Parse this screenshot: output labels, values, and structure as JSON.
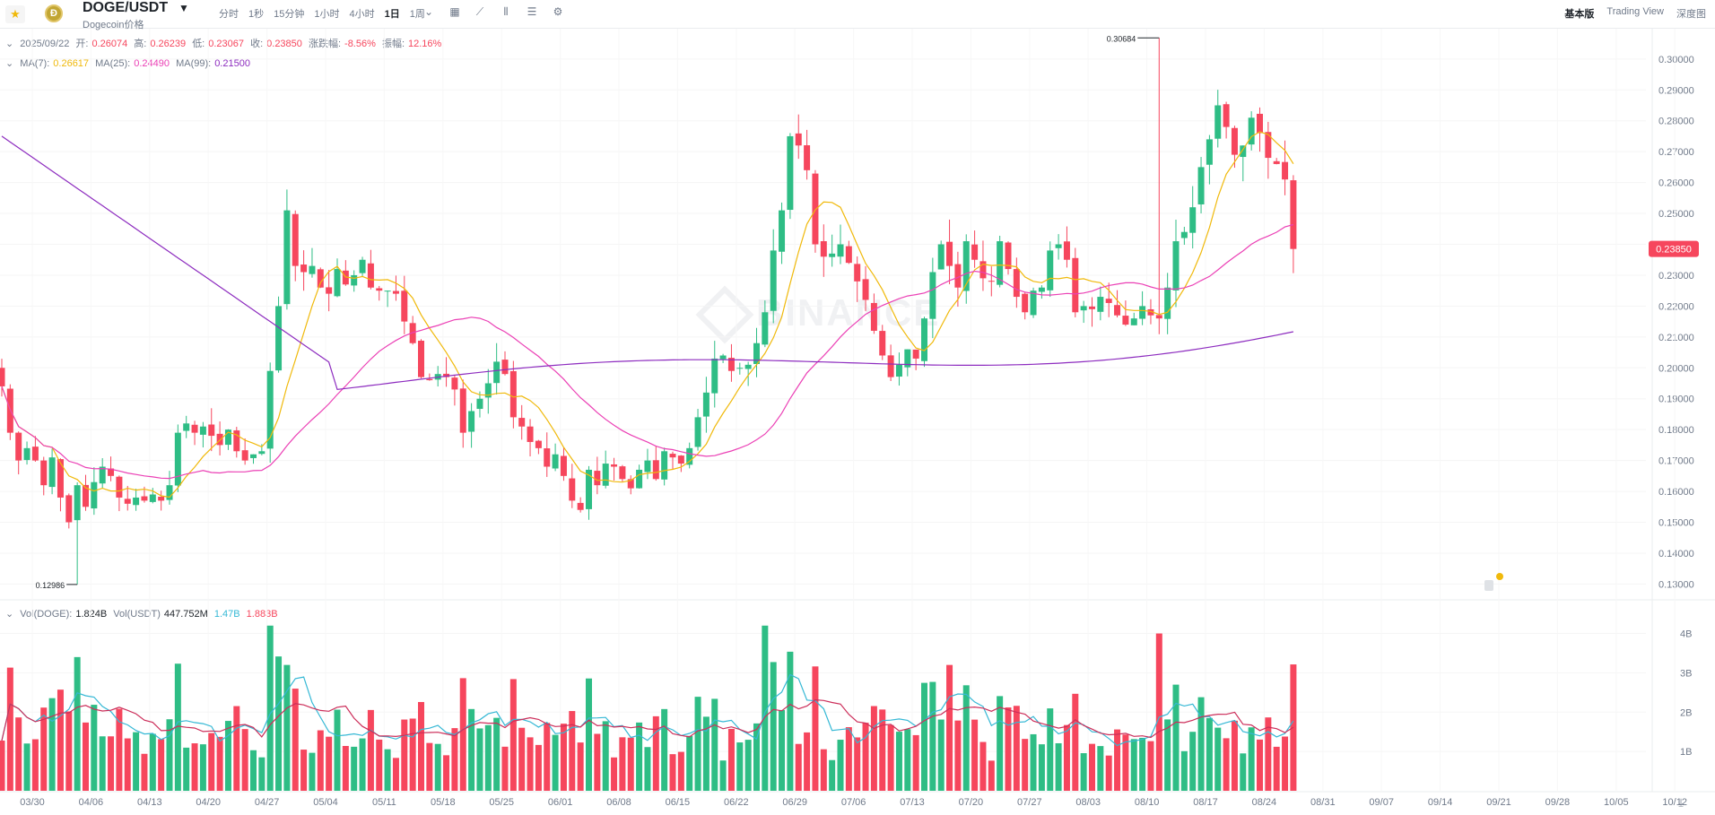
{
  "header": {
    "pair": "DOGE/USDT",
    "subtitle": "Dogecoin价格",
    "intervals": [
      "分时",
      "1秒",
      "15分钟",
      "1小时",
      "4小时",
      "1日",
      "1周"
    ],
    "active_interval": "1日",
    "views": [
      "基本版",
      "Trading View",
      "深度图"
    ],
    "active_view": "基本版"
  },
  "ohlc": {
    "date": "2025/09/22",
    "open_label": "开:",
    "open": "0.26074",
    "high_label": "高:",
    "high": "0.26239",
    "low_label": "低:",
    "low": "0.23067",
    "close_label": "收:",
    "close": "0.23850",
    "change_label": "涨跌幅:",
    "change": "-8.56%",
    "amp_label": "振幅:",
    "amp": "12.16%"
  },
  "ma": {
    "ma7_label": "MA(7):",
    "ma7": "0.26617",
    "ma25_label": "MA(25):",
    "ma25": "0.24490",
    "ma99_label": "MA(99):",
    "ma99": "0.21500"
  },
  "vol": {
    "doge_label": "Vol(DOGE):",
    "doge": "1.824B",
    "usdt_label": "Vol(USDT)",
    "usdt": "447.752M",
    "ma1": "1.47B",
    "ma2": "1.883B"
  },
  "watermark": "BINANCE",
  "colors": {
    "up": "#2ebd85",
    "down": "#f6465d",
    "ma7": "#f0b90b",
    "ma25": "#eb40b5",
    "ma99": "#8d2cbf",
    "vma1": "#35b8d5",
    "vma2": "#cc2e5a"
  },
  "chart_data": {
    "type": "candlestick",
    "price_axis": [
      "0.30000",
      "0.29000",
      "0.28000",
      "0.27000",
      "0.26000",
      "0.25000",
      "0.24000",
      "0.23000",
      "0.22000",
      "0.21000",
      "0.20000",
      "0.19000",
      "0.18000",
      "0.17000",
      "0.16000",
      "0.15000",
      "0.14000",
      "0.13000"
    ],
    "price_range": [
      0.1246,
      0.3075
    ],
    "volume_axis": [
      "4B",
      "3B",
      "2B",
      "1B"
    ],
    "date_axis": [
      "03/30",
      "04/06",
      "04/13",
      "04/20",
      "04/27",
      "05/04",
      "05/11",
      "05/18",
      "05/25",
      "06/01",
      "06/08",
      "06/15",
      "06/22",
      "06/29",
      "07/06",
      "07/13",
      "07/20",
      "07/27",
      "08/03",
      "08/10",
      "08/17",
      "08/24",
      "08/31",
      "09/07",
      "09/14",
      "09/21",
      "09/28",
      "10/05",
      "10/12"
    ],
    "current_price": "0.23850",
    "high_marker": "0.30684",
    "low_marker": "0.12986",
    "closes": [
      0.194,
      0.179,
      0.17,
      0.174,
      0.17,
      0.162,
      0.171,
      0.158,
      0.15,
      0.162,
      0.155,
      0.163,
      0.168,
      0.165,
      0.158,
      0.156,
      0.158,
      0.157,
      0.159,
      0.157,
      0.162,
      0.179,
      0.182,
      0.179,
      0.181,
      0.178,
      0.175,
      0.18,
      0.173,
      0.17,
      0.172,
      0.173,
      0.199,
      0.22,
      0.251,
      0.233,
      0.231,
      0.233,
      0.226,
      0.224,
      0.232,
      0.227,
      0.23,
      0.235,
      0.226,
      0.225,
      0.225,
      0.224,
      0.215,
      0.208,
      0.197,
      0.196,
      0.198,
      0.197,
      0.193,
      0.179,
      0.186,
      0.19,
      0.195,
      0.202,
      0.198,
      0.184,
      0.181,
      0.176,
      0.174,
      0.168,
      0.172,
      0.165,
      0.157,
      0.154,
      0.167,
      0.162,
      0.169,
      0.168,
      0.164,
      0.161,
      0.167,
      0.17,
      0.164,
      0.173,
      0.171,
      0.169,
      0.174,
      0.184,
      0.192,
      0.203,
      0.204,
      0.199,
      0.2,
      0.201,
      0.208,
      0.218,
      0.238,
      0.251,
      0.275,
      0.272,
      0.264,
      0.24,
      0.236,
      0.237,
      0.24,
      0.234,
      0.228,
      0.222,
      0.212,
      0.204,
      0.197,
      0.201,
      0.206,
      0.203,
      0.216,
      0.231,
      0.24,
      0.233,
      0.226,
      0.241,
      0.235,
      0.229,
      0.228,
      0.241,
      0.232,
      0.223,
      0.218,
      0.225,
      0.226,
      0.238,
      0.24,
      0.235,
      0.218,
      0.22,
      0.219,
      0.223,
      0.221,
      0.217,
      0.214,
      0.216,
      0.22,
      0.217,
      0.216,
      0.226,
      0.241,
      0.244,
      0.252,
      0.265,
      0.274,
      0.285,
      0.278,
      0.269,
      0.272,
      0.281,
      0.276,
      0.268,
      0.266,
      0.261,
      0.2385
    ]
  }
}
